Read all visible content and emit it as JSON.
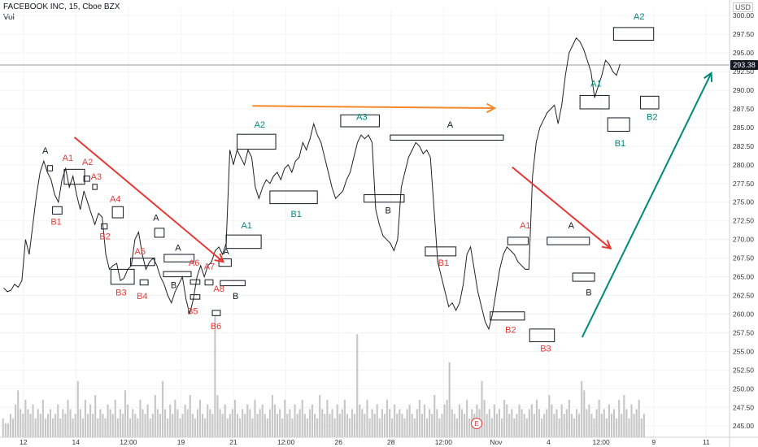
{
  "header": {
    "symbol": "FACEBOOK INC, 15, Cboe BZX",
    "volume_label": "Vol",
    "currency": "USD",
    "last_price": "293.38",
    "earnings_marker": "E"
  },
  "chart_data": {
    "type": "line",
    "ylim": [
      243.5,
      301
    ],
    "yticks": [
      "245.00",
      "247.50",
      "250.00",
      "252.50",
      "255.00",
      "257.50",
      "260.00",
      "262.50",
      "265.00",
      "267.50",
      "270.00",
      "272.50",
      "275.00",
      "277.50",
      "280.00",
      "282.50",
      "285.00",
      "287.50",
      "290.00",
      "292.50",
      "295.00",
      "297.50",
      "300.00"
    ],
    "xticks": [
      "12",
      "14",
      "12:00",
      "19",
      "21",
      "12:00",
      "26",
      "28",
      "12:00",
      "Nov",
      "4",
      "12:00",
      "9",
      "11"
    ],
    "colors": {
      "price": "#222222",
      "red": "#e53935",
      "teal": "#00897b",
      "orange": "#f5892a",
      "black": "#131722",
      "volume": "#c7c7c7",
      "lastline": "#9e9e9e"
    },
    "price_path": [
      [
        0.5,
        263.5
      ],
      [
        1.0,
        263.0
      ],
      [
        1.5,
        263.2
      ],
      [
        2.0,
        264.0
      ],
      [
        2.5,
        263.6
      ],
      [
        3.0,
        264.5
      ],
      [
        3.5,
        270.0
      ],
      [
        4.0,
        268.0
      ],
      [
        4.5,
        272.0
      ],
      [
        5.0,
        276.0
      ],
      [
        5.5,
        279.0
      ],
      [
        6.0,
        280.5
      ],
      [
        6.5,
        279.0
      ],
      [
        7.0,
        278.0
      ],
      [
        7.5,
        276.0
      ],
      [
        8.0,
        275.0
      ],
      [
        8.5,
        278.0
      ],
      [
        9.0,
        279.5
      ],
      [
        9.5,
        277.0
      ],
      [
        10.0,
        278.5
      ],
      [
        10.5,
        276.0
      ],
      [
        11.0,
        274.0
      ],
      [
        11.5,
        276.5
      ],
      [
        12.0,
        275.0
      ],
      [
        12.5,
        273.5
      ],
      [
        13.0,
        272.0
      ],
      [
        13.5,
        273.5
      ],
      [
        14.0,
        273.0
      ],
      [
        14.5,
        268.0
      ],
      [
        15.0,
        266.0
      ],
      [
        15.5,
        266.5
      ],
      [
        16.0,
        266.8
      ],
      [
        16.5,
        264.5
      ],
      [
        17.0,
        264.8
      ],
      [
        17.5,
        266.0
      ],
      [
        18.0,
        266.5
      ],
      [
        18.5,
        270.0
      ],
      [
        19.0,
        271.0
      ],
      [
        19.5,
        268.0
      ],
      [
        20.0,
        266.0
      ],
      [
        20.5,
        267.0
      ],
      [
        21.0,
        267.5
      ],
      [
        21.5,
        266.5
      ],
      [
        22.0,
        265.0
      ],
      [
        22.5,
        264.0
      ],
      [
        23.0,
        262.5
      ],
      [
        23.5,
        261.5
      ],
      [
        24.0,
        263.0
      ],
      [
        24.5,
        264.0
      ],
      [
        25.0,
        265.0
      ],
      [
        25.5,
        262.0
      ],
      [
        26.0,
        260.0
      ],
      [
        26.5,
        262.0
      ],
      [
        27.0,
        265.0
      ],
      [
        27.5,
        266.5
      ],
      [
        28.0,
        265.0
      ],
      [
        28.5,
        266.5
      ],
      [
        29.0,
        267.0
      ],
      [
        29.5,
        268.5
      ],
      [
        30.0,
        269.0
      ],
      [
        30.5,
        268.0
      ],
      [
        31.0,
        269.5
      ],
      [
        31.5,
        282.0
      ],
      [
        32.0,
        280.0
      ],
      [
        32.5,
        282.0
      ],
      [
        33.0,
        281.0
      ],
      [
        33.5,
        280.0
      ],
      [
        34.0,
        282.0
      ],
      [
        34.5,
        281.0
      ],
      [
        35.0,
        277.0
      ],
      [
        35.5,
        275.5
      ],
      [
        36.0,
        277.0
      ],
      [
        36.5,
        278.0
      ],
      [
        37.0,
        277.5
      ],
      [
        37.5,
        278.5
      ],
      [
        38.0,
        279.0
      ],
      [
        38.5,
        278.0
      ],
      [
        39.0,
        279.5
      ],
      [
        39.5,
        280.0
      ],
      [
        40.0,
        279.0
      ],
      [
        40.5,
        280.5
      ],
      [
        41.0,
        281.0
      ],
      [
        41.5,
        283.0
      ],
      [
        42.0,
        282.0
      ],
      [
        42.5,
        283.5
      ],
      [
        43.0,
        285.5
      ],
      [
        43.5,
        284.0
      ],
      [
        44.0,
        283.0
      ],
      [
        44.5,
        281.0
      ],
      [
        45.0,
        279.0
      ],
      [
        45.5,
        277.0
      ],
      [
        46.0,
        275.5
      ],
      [
        46.5,
        276.0
      ],
      [
        47.0,
        276.5
      ],
      [
        47.5,
        278.0
      ],
      [
        48.0,
        279.0
      ],
      [
        48.5,
        281.0
      ],
      [
        49.0,
        283.0
      ],
      [
        49.5,
        284.0
      ],
      [
        50.0,
        283.5
      ],
      [
        50.5,
        284.0
      ],
      [
        51.0,
        283.0
      ],
      [
        51.5,
        274.0
      ],
      [
        52.0,
        272.0
      ],
      [
        52.5,
        270.5
      ],
      [
        53.0,
        270.0
      ],
      [
        53.5,
        269.5
      ],
      [
        54.0,
        268.5
      ],
      [
        54.5,
        270.0
      ],
      [
        55.0,
        277.0
      ],
      [
        55.5,
        279.0
      ],
      [
        56.0,
        281.0
      ],
      [
        56.5,
        282.0
      ],
      [
        57.0,
        283.0
      ],
      [
        57.5,
        282.5
      ],
      [
        58.0,
        281.5
      ],
      [
        58.5,
        282.0
      ],
      [
        59.0,
        281.0
      ],
      [
        59.5,
        274.0
      ],
      [
        60.0,
        267.0
      ],
      [
        60.5,
        265.0
      ],
      [
        61.0,
        263.0
      ],
      [
        61.5,
        261.0
      ],
      [
        62.0,
        261.5
      ],
      [
        62.5,
        260.5
      ],
      [
        63.0,
        261.5
      ],
      [
        63.5,
        264.0
      ],
      [
        64.0,
        268.0
      ],
      [
        64.5,
        269.0
      ],
      [
        65.0,
        266.0
      ],
      [
        65.5,
        263.0
      ],
      [
        66.0,
        261.0
      ],
      [
        66.5,
        259.0
      ],
      [
        67.0,
        258.0
      ],
      [
        67.5,
        260.0
      ],
      [
        68.0,
        263.0
      ],
      [
        68.5,
        266.0
      ],
      [
        69.0,
        268.0
      ],
      [
        69.5,
        269.0
      ],
      [
        70.0,
        268.5
      ],
      [
        70.5,
        268.0
      ],
      [
        71.0,
        267.0
      ],
      [
        71.5,
        266.5
      ],
      [
        72.0,
        266.0
      ],
      [
        72.5,
        266.0
      ],
      [
        73.0,
        278.5
      ],
      [
        73.5,
        283.0
      ],
      [
        74.0,
        285.0
      ],
      [
        74.5,
        286.0
      ],
      [
        75.0,
        287.0
      ],
      [
        75.5,
        287.5
      ],
      [
        76.0,
        288.0
      ],
      [
        76.5,
        285.5
      ],
      [
        77.0,
        288.0
      ],
      [
        77.5,
        292.0
      ],
      [
        78.0,
        295.0
      ],
      [
        78.5,
        296.0
      ],
      [
        79.0,
        297.0
      ],
      [
        79.5,
        296.5
      ],
      [
        80.0,
        295.5
      ],
      [
        80.5,
        294.0
      ],
      [
        81.0,
        292.5
      ],
      [
        81.5,
        289.0
      ],
      [
        82.0,
        290.5
      ],
      [
        82.5,
        292.0
      ],
      [
        83.0,
        294.0
      ],
      [
        83.5,
        293.5
      ],
      [
        84.0,
        292.5
      ],
      [
        84.5,
        292.0
      ],
      [
        85.0,
        293.5
      ]
    ],
    "volume": [
      4,
      3,
      3,
      5,
      4,
      7,
      10,
      6,
      5,
      8,
      6,
      5,
      7,
      4,
      6,
      5,
      8,
      4,
      5,
      6,
      4,
      5,
      7,
      4,
      6,
      5,
      8,
      6,
      4,
      5,
      12,
      6,
      4,
      8,
      5,
      7,
      5,
      9,
      4,
      6,
      5,
      4,
      7,
      6,
      5,
      8,
      4,
      6,
      5,
      10,
      7,
      4,
      6,
      5,
      4,
      8,
      6,
      5,
      7,
      4,
      5,
      9,
      6,
      5,
      12,
      6,
      4,
      7,
      5,
      8,
      6,
      4,
      5,
      7,
      6,
      9,
      5,
      4,
      6,
      8,
      5,
      4,
      7,
      6,
      5,
      26,
      9,
      6,
      5,
      7,
      4,
      5,
      6,
      8,
      5,
      4,
      6,
      5,
      7,
      6,
      4,
      8,
      5,
      6,
      7,
      5,
      4,
      6,
      9,
      7,
      5,
      6,
      4,
      8,
      5,
      6,
      4,
      7,
      5,
      6,
      8,
      5,
      4,
      6,
      7,
      5,
      4,
      9,
      6,
      5,
      8,
      5,
      6,
      4,
      7,
      5,
      6,
      8,
      5,
      4,
      6,
      5,
      22,
      7,
      6,
      5,
      8,
      4,
      6,
      5,
      7,
      4,
      6,
      5,
      8,
      6,
      4,
      7,
      5,
      6,
      5,
      4,
      6,
      7,
      5,
      4,
      6,
      8,
      5,
      7,
      4,
      6,
      5,
      9,
      6,
      4,
      5,
      7,
      8,
      16,
      6,
      5,
      4,
      7,
      6,
      5,
      8,
      4,
      6,
      5,
      7,
      6,
      12,
      8,
      5,
      6,
      4,
      7,
      5,
      6,
      4,
      8,
      7,
      5,
      6,
      4,
      5,
      7,
      6,
      5,
      4,
      6,
      7,
      5,
      8,
      6,
      4,
      5,
      6,
      9,
      7,
      5,
      6,
      4,
      7,
      5,
      6,
      8,
      5,
      4,
      6,
      5,
      12,
      10,
      6,
      7,
      5,
      4,
      6,
      8,
      5,
      6,
      4,
      7,
      5,
      6,
      4,
      8,
      5,
      9,
      6,
      4,
      7,
      5,
      6,
      8,
      4,
      5
    ],
    "boxes": [
      {
        "x1": 8.8,
        "x2": 11.6,
        "y1": 277.4,
        "y2": 279.4
      },
      {
        "x1": 7.2,
        "x2": 8.5,
        "y1": 273.4,
        "y2": 274.4
      },
      {
        "x1": 6.5,
        "x2": 7.2,
        "y1": 279.2,
        "y2": 279.9
      },
      {
        "x1": 11.5,
        "x2": 12.3,
        "y1": 277.8,
        "y2": 278.5
      },
      {
        "x1": 12.7,
        "x2": 13.3,
        "y1": 276.7,
        "y2": 277.4
      },
      {
        "x1": 13.9,
        "x2": 14.7,
        "y1": 271.4,
        "y2": 272.1
      },
      {
        "x1": 15.4,
        "x2": 16.9,
        "y1": 272.9,
        "y2": 274.4
      },
      {
        "x1": 15.2,
        "x2": 18.4,
        "y1": 264.0,
        "y2": 266.0
      },
      {
        "x1": 17.9,
        "x2": 21.2,
        "y1": 266.5,
        "y2": 267.5
      },
      {
        "x1": 19.2,
        "x2": 20.3,
        "y1": 263.9,
        "y2": 264.6
      },
      {
        "x1": 21.2,
        "x2": 22.5,
        "y1": 270.3,
        "y2": 271.5
      },
      {
        "x1": 22.5,
        "x2": 26.6,
        "y1": 267.0,
        "y2": 268.0
      },
      {
        "x1": 22.4,
        "x2": 26.2,
        "y1": 265.0,
        "y2": 265.7
      },
      {
        "x1": 26.1,
        "x2": 27.4,
        "y1": 262.0,
        "y2": 262.6
      },
      {
        "x1": 26.1,
        "x2": 27.4,
        "y1": 264.0,
        "y2": 264.6
      },
      {
        "x1": 28.1,
        "x2": 29.2,
        "y1": 263.9,
        "y2": 264.6
      },
      {
        "x1": 29.1,
        "x2": 30.2,
        "y1": 259.8,
        "y2": 260.5
      },
      {
        "x1": 30.0,
        "x2": 31.7,
        "y1": 266.4,
        "y2": 267.4
      },
      {
        "x1": 30.2,
        "x2": 33.6,
        "y1": 263.8,
        "y2": 264.5
      },
      {
        "x1": 31.0,
        "x2": 35.8,
        "y1": 268.8,
        "y2": 270.6
      },
      {
        "x1": 32.5,
        "x2": 37.8,
        "y1": 282.1,
        "y2": 284.1
      },
      {
        "x1": 37.0,
        "x2": 43.5,
        "y1": 274.8,
        "y2": 276.5
      },
      {
        "x1": 46.7,
        "x2": 52.0,
        "y1": 285.1,
        "y2": 286.7
      },
      {
        "x1": 49.9,
        "x2": 55.4,
        "y1": 275.0,
        "y2": 276.0
      },
      {
        "x1": 53.5,
        "x2": 69.0,
        "y1": 283.3,
        "y2": 284.0
      },
      {
        "x1": 58.3,
        "x2": 62.5,
        "y1": 267.8,
        "y2": 269.0
      },
      {
        "x1": 67.2,
        "x2": 71.9,
        "y1": 259.2,
        "y2": 260.3
      },
      {
        "x1": 69.6,
        "x2": 72.4,
        "y1": 269.3,
        "y2": 270.3
      },
      {
        "x1": 72.6,
        "x2": 76.0,
        "y1": 256.3,
        "y2": 258.0
      },
      {
        "x1": 75.0,
        "x2": 80.8,
        "y1": 269.3,
        "y2": 270.3
      },
      {
        "x1": 78.5,
        "x2": 81.5,
        "y1": 264.4,
        "y2": 265.5
      },
      {
        "x1": 79.5,
        "x2": 83.5,
        "y1": 287.5,
        "y2": 289.3
      },
      {
        "x1": 83.3,
        "x2": 86.3,
        "y1": 284.5,
        "y2": 286.3
      },
      {
        "x1": 84.1,
        "x2": 89.6,
        "y1": 296.7,
        "y2": 298.4
      },
      {
        "x1": 87.8,
        "x2": 90.3,
        "y1": 287.5,
        "y2": 289.2
      }
    ],
    "arrows": [
      {
        "x1": 10.2,
        "y1": 283.7,
        "x2": 30.6,
        "y2": 267.0,
        "color": "red"
      },
      {
        "x1": 34.6,
        "y1": 287.9,
        "x2": 67.8,
        "y2": 287.6,
        "color": "orange"
      },
      {
        "x1": 70.2,
        "y1": 279.7,
        "x2": 83.7,
        "y2": 268.8,
        "color": "red"
      },
      {
        "x1": 79.8,
        "y1": 256.9,
        "x2": 97.5,
        "y2": 292.3,
        "color": "teal"
      }
    ],
    "labels": [
      {
        "text": "A",
        "x": 6.2,
        "y": 281.5,
        "color": "black"
      },
      {
        "text": "A1",
        "x": 9.3,
        "y": 280.5,
        "color": "red"
      },
      {
        "text": "A2",
        "x": 12.0,
        "y": 280.0,
        "color": "red"
      },
      {
        "text": "A3",
        "x": 13.2,
        "y": 278.0,
        "color": "red"
      },
      {
        "text": "A4",
        "x": 15.8,
        "y": 275.0,
        "color": "red"
      },
      {
        "text": "A5",
        "x": 19.2,
        "y": 268.0,
        "color": "red"
      },
      {
        "text": "A",
        "x": 21.4,
        "y": 272.5,
        "color": "black"
      },
      {
        "text": "A",
        "x": 24.4,
        "y": 268.5,
        "color": "black"
      },
      {
        "text": "A6",
        "x": 26.6,
        "y": 266.5,
        "color": "red"
      },
      {
        "text": "A7",
        "x": 28.7,
        "y": 266.0,
        "color": "red"
      },
      {
        "text": "A",
        "x": 31.0,
        "y": 268.0,
        "color": "black"
      },
      {
        "text": "A8",
        "x": 30.0,
        "y": 263.0,
        "color": "red"
      },
      {
        "text": "B1",
        "x": 7.7,
        "y": 272.0,
        "color": "red"
      },
      {
        "text": "B2",
        "x": 14.4,
        "y": 270.0,
        "color": "red"
      },
      {
        "text": "B3",
        "x": 16.6,
        "y": 262.5,
        "color": "red"
      },
      {
        "text": "B4",
        "x": 19.5,
        "y": 262.0,
        "color": "red"
      },
      {
        "text": "B",
        "x": 23.8,
        "y": 263.5,
        "color": "black"
      },
      {
        "text": "B5",
        "x": 26.4,
        "y": 260.0,
        "color": "red"
      },
      {
        "text": "B6",
        "x": 29.6,
        "y": 258.0,
        "color": "red"
      },
      {
        "text": "B",
        "x": 32.3,
        "y": 262.0,
        "color": "black"
      },
      {
        "text": "A1",
        "x": 33.8,
        "y": 271.5,
        "color": "teal"
      },
      {
        "text": "A2",
        "x": 35.6,
        "y": 285.0,
        "color": "teal"
      },
      {
        "text": "B1",
        "x": 40.6,
        "y": 273.0,
        "color": "teal"
      },
      {
        "text": "A3",
        "x": 49.6,
        "y": 286.0,
        "color": "teal"
      },
      {
        "text": "B",
        "x": 53.2,
        "y": 273.5,
        "color": "black"
      },
      {
        "text": "A",
        "x": 61.7,
        "y": 285.0,
        "color": "black"
      },
      {
        "text": "B1",
        "x": 60.8,
        "y": 266.5,
        "color": "red"
      },
      {
        "text": "A1",
        "x": 72.0,
        "y": 271.5,
        "color": "red"
      },
      {
        "text": "B2",
        "x": 70.0,
        "y": 257.5,
        "color": "red"
      },
      {
        "text": "A",
        "x": 78.3,
        "y": 271.5,
        "color": "black"
      },
      {
        "text": "B",
        "x": 80.7,
        "y": 262.5,
        "color": "black"
      },
      {
        "text": "B3",
        "x": 74.8,
        "y": 255.0,
        "color": "red"
      },
      {
        "text": "A1",
        "x": 81.7,
        "y": 290.5,
        "color": "teal"
      },
      {
        "text": "B1",
        "x": 85.0,
        "y": 282.5,
        "color": "teal"
      },
      {
        "text": "A2",
        "x": 87.6,
        "y": 299.5,
        "color": "teal"
      },
      {
        "text": "B2",
        "x": 89.4,
        "y": 286.0,
        "color": "teal"
      }
    ]
  }
}
